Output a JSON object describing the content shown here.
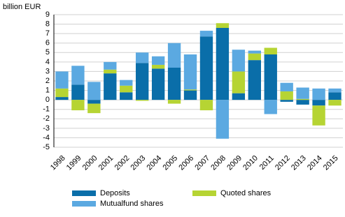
{
  "chart_data": {
    "type": "stacked_bar",
    "y_label": "billion EUR",
    "categories": [
      "1998",
      "1999",
      "2000",
      "2001",
      "2002",
      "2003",
      "2004",
      "2005",
      "2006",
      "2007",
      "2008",
      "2009",
      "2010",
      "2011",
      "2012",
      "2013",
      "2014",
      "2015"
    ],
    "series": [
      {
        "name": "Deposits",
        "color": "#0a6ea9",
        "values": [
          0.3,
          1.6,
          -0.4,
          2.8,
          0.8,
          3.9,
          3.3,
          3.4,
          1.0,
          6.7,
          7.6,
          0.7,
          4.2,
          4.8,
          -0.2,
          -0.5,
          -0.6,
          0.8
        ]
      },
      {
        "name": "Quoted shares",
        "color": "#b6d433",
        "values": [
          0.9,
          -1.1,
          -1.0,
          0.4,
          0.7,
          -0.1,
          0.4,
          -0.4,
          0.1,
          -1.1,
          0.5,
          2.3,
          0.7,
          0.7,
          0.9,
          0.1,
          -2.1,
          -0.6
        ]
      },
      {
        "name": "Mutualfund shares",
        "color": "#5ba9e1",
        "values": [
          1.8,
          2.0,
          1.9,
          0.8,
          0.6,
          1.1,
          0.9,
          2.6,
          3.7,
          0.6,
          -4.1,
          2.3,
          0.3,
          -1.5,
          0.9,
          1.2,
          1.2,
          0.4
        ]
      }
    ],
    "ylim": [
      -5,
      9
    ],
    "yticks": [
      -5,
      -4,
      -3,
      -2,
      -1,
      0,
      1,
      2,
      3,
      4,
      5,
      6,
      7,
      8,
      9
    ],
    "grid": true
  }
}
